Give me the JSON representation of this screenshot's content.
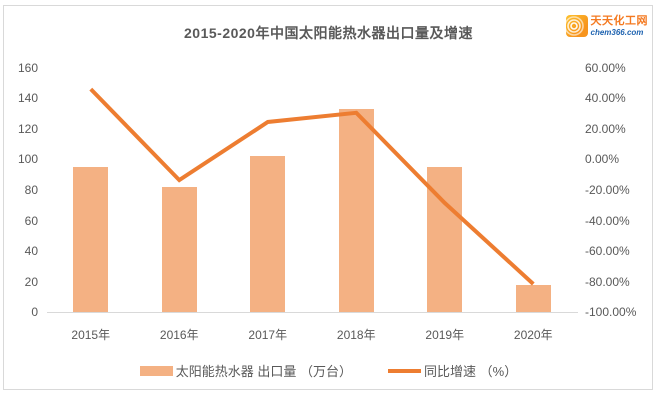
{
  "header": {
    "logo": {
      "name": "天天化工网",
      "domain": "chem366.com",
      "icon": "concentric-rings-icon"
    }
  },
  "chart_data": {
    "type": "bar+line",
    "title": "2015-2020年中国太阳能热水器出口量及增速",
    "categories": [
      "2015年",
      "2016年",
      "2017年",
      "2018年",
      "2019年",
      "2020年"
    ],
    "series": [
      {
        "name": "太阳能热水器 出口量 （万台）",
        "type": "bar",
        "axis": "left",
        "values": [
          95,
          82,
          102,
          133,
          95,
          18
        ],
        "color": "#F4B183"
      },
      {
        "name": "同比增速 （%）",
        "type": "line",
        "axis": "right",
        "values": [
          46,
          -13.5,
          24.5,
          30.5,
          -28.5,
          -81.5
        ],
        "color": "#ED7D31"
      }
    ],
    "left_axis": {
      "min": 0,
      "max": 160,
      "tick_values": [
        160,
        140,
        120,
        100,
        80,
        60,
        40,
        20,
        0
      ],
      "tick_labels": [
        "160",
        "140",
        "120",
        "100",
        "80",
        "60",
        "40",
        "20",
        "0"
      ]
    },
    "right_axis": {
      "min": -100,
      "max": 60,
      "tick_values": [
        60,
        40,
        20,
        0,
        -20,
        -40,
        -60,
        -80,
        -100
      ],
      "tick_labels": [
        "60.00%",
        "40.00%",
        "20.00%",
        "0.00%",
        "-20.00%",
        "-40.00%",
        "-60.00%",
        "-80.00%",
        "-100.00%"
      ]
    },
    "grid": false,
    "legend_position": "bottom"
  },
  "colors": {
    "bar_fill": "#F4B183",
    "line_stroke": "#ED7D31",
    "text": "#595959",
    "axis_line": "#D9D9D9",
    "frame_border": "#D9D9D9",
    "logo_orange": "#F47920",
    "logo_blue": "#1E63B0"
  }
}
